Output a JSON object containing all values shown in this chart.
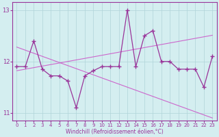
{
  "xlabel": "Windchill (Refroidissement éolien,°C)",
  "x": [
    0,
    1,
    2,
    3,
    4,
    5,
    6,
    7,
    8,
    9,
    10,
    11,
    12,
    13,
    14,
    15,
    16,
    17,
    18,
    19,
    20,
    21,
    22,
    23
  ],
  "line1": [
    11.9,
    11.9,
    12.4,
    11.85,
    11.72,
    11.72,
    11.62,
    11.1,
    11.72,
    11.82,
    11.9,
    11.9,
    11.9,
    13.0,
    11.9,
    12.5,
    12.6,
    12.0,
    12.0,
    11.85,
    11.85,
    11.85,
    11.5,
    12.1
  ],
  "trend_down": [
    12.28,
    12.22,
    12.16,
    12.1,
    12.04,
    11.98,
    11.92,
    11.86,
    11.8,
    11.74,
    11.68,
    11.62,
    11.56,
    11.5,
    11.44,
    11.38,
    11.32,
    11.26,
    11.2,
    11.14,
    11.08,
    11.02,
    10.96,
    10.9
  ],
  "trend_up": [
    11.82,
    11.85,
    11.88,
    11.91,
    11.94,
    11.97,
    12.0,
    12.03,
    12.06,
    12.09,
    12.12,
    12.15,
    12.18,
    12.21,
    12.24,
    12.27,
    12.3,
    12.33,
    12.36,
    12.39,
    12.42,
    12.45,
    12.48,
    12.51
  ],
  "line_color": "#993399",
  "trend_color": "#cc66cc",
  "bg_color": "#d4eef0",
  "grid_color": "#b0d4d8",
  "ylim": [
    10.85,
    13.15
  ],
  "yticks": [
    11,
    12,
    13
  ],
  "xlim": [
    -0.5,
    23.5
  ]
}
